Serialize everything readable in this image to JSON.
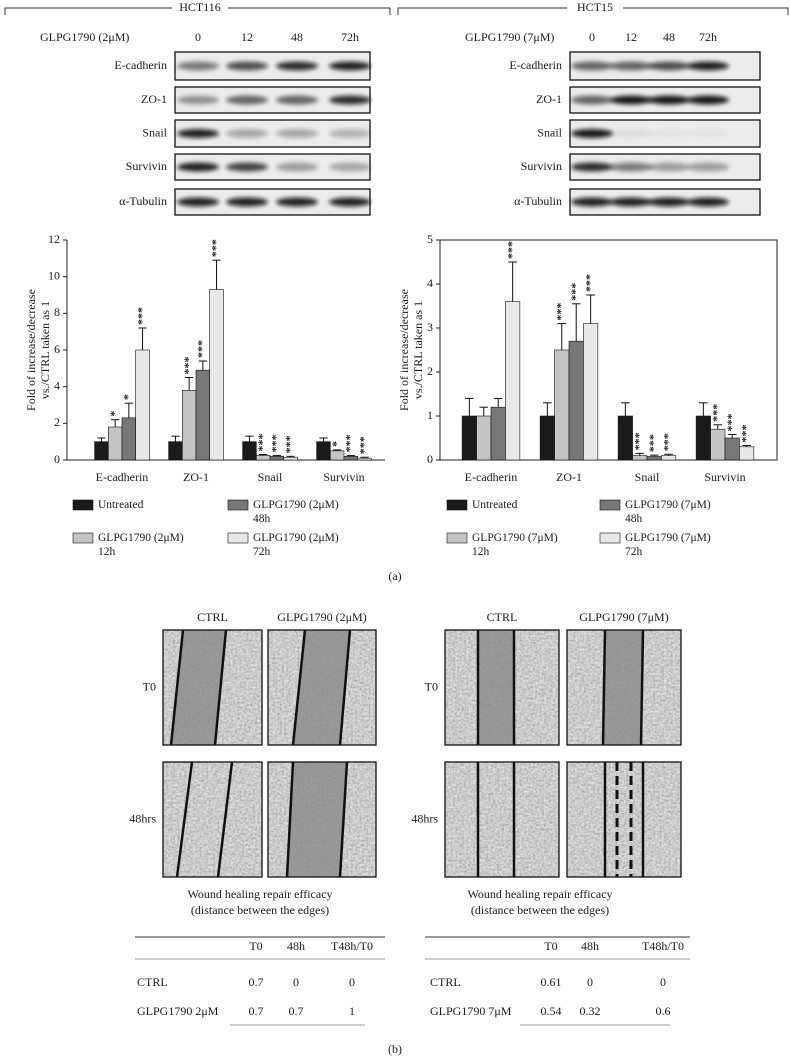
{
  "headers": [
    "HCT116",
    "HCT15"
  ],
  "blots": [
    {
      "treatment": "GLPG1790 (2μM)",
      "times": [
        "0",
        "12",
        "48",
        "72h"
      ],
      "proteins": [
        "E-cadherin",
        "ZO-1",
        "Snail",
        "Survivin",
        "α-Tubulin"
      ]
    },
    {
      "treatment": "GLPG1790 (7μM)",
      "times": [
        "0",
        "12",
        "48",
        "72h"
      ],
      "proteins": [
        "E-cadherin",
        "ZO-1",
        "Snail",
        "Survivin",
        "α-Tubulin"
      ]
    }
  ],
  "chart_data": [
    {
      "type": "bar",
      "ylabel": [
        "Fold of increase/decrease",
        "vs./CTRL taken as 1"
      ],
      "categories": [
        "E-cadherin",
        "ZO-1",
        "Snail",
        "Survivin"
      ],
      "ylim": [
        0,
        12
      ],
      "yticks": [
        0,
        2,
        4,
        6,
        8,
        10,
        12
      ],
      "box": false,
      "series": [
        {
          "name": "Untreated",
          "color": "#1a1a1a",
          "values": [
            1,
            1,
            1,
            1
          ],
          "errors": [
            0.2,
            0.3,
            0.3,
            0.2
          ]
        },
        {
          "name": "GLPG1790 (2μM) 12h",
          "color": "#c4c4c4",
          "values": [
            1.8,
            3.8,
            0.25,
            0.5
          ],
          "errors": [
            0.4,
            0.7,
            0.05,
            0.05
          ],
          "significance": [
            "*",
            "***",
            "***",
            "*"
          ]
        },
        {
          "name": "GLPG1790 (2μM) 48h",
          "color": "#777777",
          "values": [
            2.3,
            4.9,
            0.2,
            0.2
          ],
          "errors": [
            0.8,
            0.5,
            0.05,
            0.05
          ],
          "significance": [
            "*",
            "***",
            "***",
            "***"
          ]
        },
        {
          "name": "GLPG1790 (2μM) 72h",
          "color": "#e8e8e8",
          "values": [
            6,
            9.3,
            0.15,
            0.1
          ],
          "errors": [
            1.2,
            1.6,
            0.05,
            0.05
          ],
          "significance": [
            "***",
            "***",
            "***",
            "***"
          ]
        }
      ]
    },
    {
      "type": "bar",
      "ylabel": [
        "Fold of increase/decrease",
        "vs./CTRL taken as 1"
      ],
      "categories": [
        "E-cadherin",
        "ZO-1",
        "Snail",
        "Survivin"
      ],
      "ylim": [
        0,
        5
      ],
      "yticks": [
        0,
        1,
        2,
        3,
        4,
        5
      ],
      "box": true,
      "series": [
        {
          "name": "Untreated",
          "color": "#1a1a1a",
          "values": [
            1,
            1,
            1,
            1
          ],
          "errors": [
            0.4,
            0.3,
            0.3,
            0.3
          ]
        },
        {
          "name": "GLPG1790 (7μM) 12h",
          "color": "#c4c4c4",
          "values": [
            1,
            2.5,
            0.1,
            0.7
          ],
          "errors": [
            0.2,
            0.6,
            0.05,
            0.1
          ],
          "significance": [
            null,
            "***",
            "***",
            "***"
          ]
        },
        {
          "name": "GLPG1790 (7μM) 48h",
          "color": "#777777",
          "values": [
            1.2,
            2.7,
            0.08,
            0.5
          ],
          "errors": [
            0.2,
            0.85,
            0.03,
            0.08
          ],
          "significance": [
            null,
            "***",
            "***",
            "***"
          ]
        },
        {
          "name": "GLPG1790 (7μM) 72h",
          "color": "#e8e8e8",
          "values": [
            3.6,
            3.1,
            0.1,
            0.3
          ],
          "errors": [
            0.9,
            0.65,
            0.03,
            0.03
          ],
          "significance": [
            "***",
            "***",
            "***",
            "***"
          ]
        }
      ]
    }
  ],
  "panel_labels": [
    "(a)",
    "(b)"
  ],
  "wound": [
    {
      "columns": [
        "CTRL",
        "GLPG1790 (2μM)"
      ],
      "rows": [
        "T0",
        "48hrs"
      ],
      "caption": [
        "Wound healing repair efficacy",
        "(distance between the edges)"
      ],
      "table": {
        "header": [
          "T0",
          "48h",
          "T48h/T0"
        ],
        "rows": [
          [
            "CTRL",
            0.7,
            0,
            0
          ],
          [
            "GLPG1790 2μM",
            0.7,
            0.7,
            1
          ]
        ]
      }
    },
    {
      "columns": [
        "CTRL",
        "GLPG1790 (7μM)"
      ],
      "rows": [
        "T0",
        "48hrs"
      ],
      "caption": [
        "Wound healing repair efficacy",
        "(distance between the edges)"
      ],
      "table": {
        "header": [
          "T0",
          "48h",
          "T48h/T0"
        ],
        "rows": [
          [
            "CTRL",
            0.61,
            0,
            0
          ],
          [
            "GLPG1790 7μM",
            0.54,
            0.32,
            0.6
          ]
        ]
      }
    }
  ]
}
